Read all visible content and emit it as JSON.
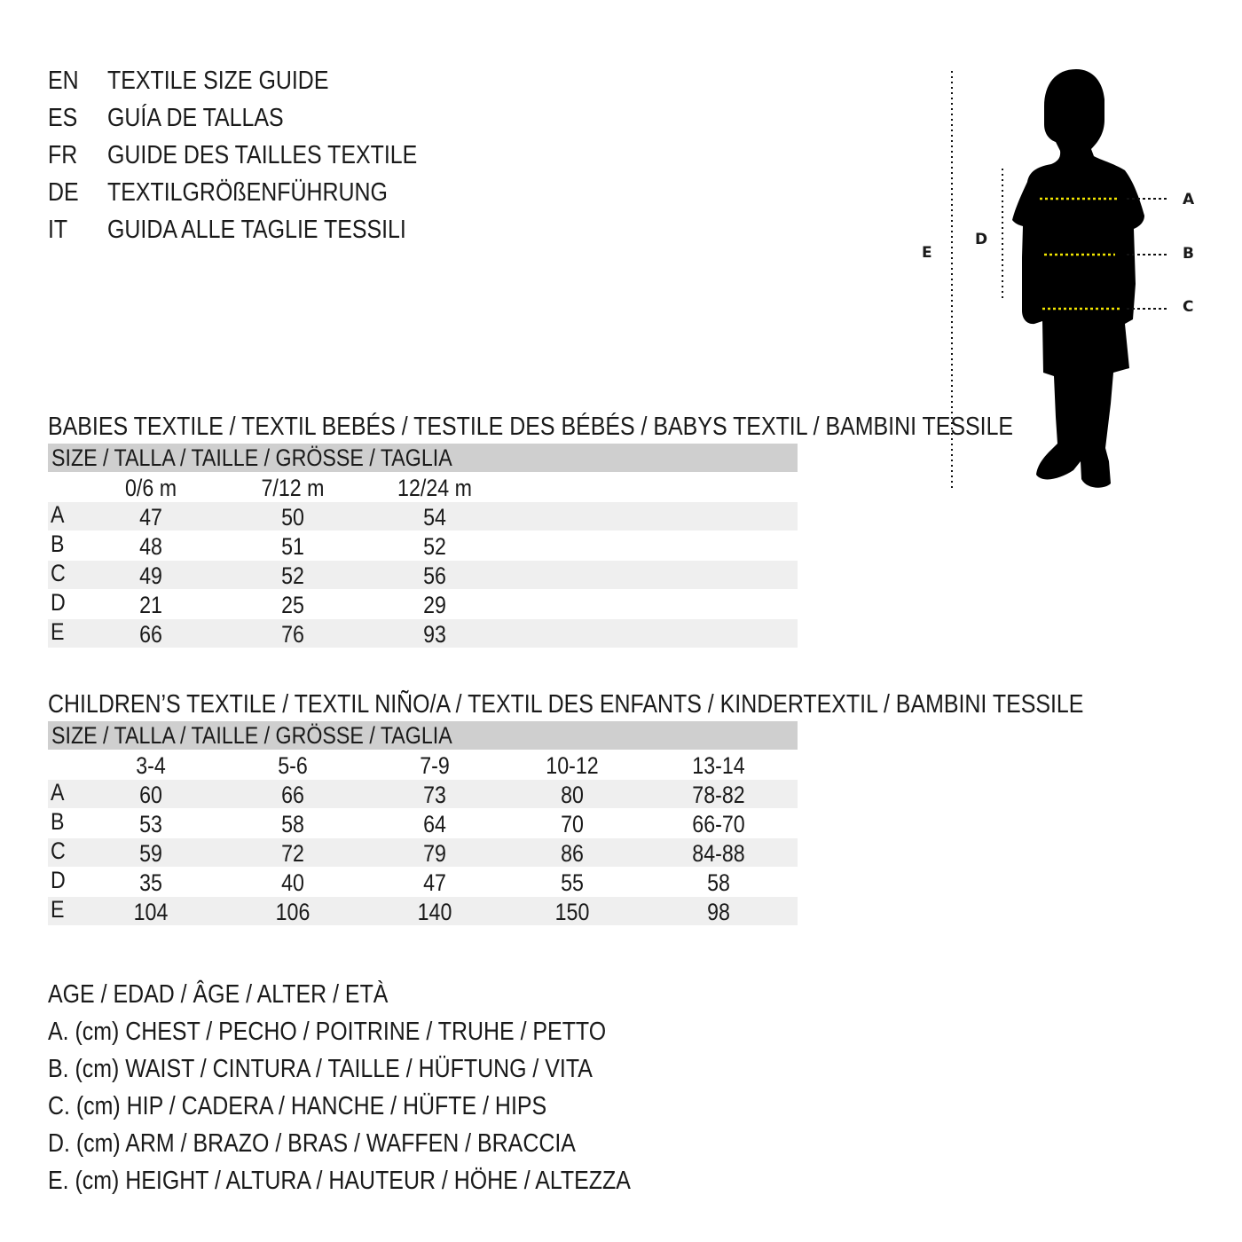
{
  "titles": [
    {
      "lang": "EN",
      "text": "TEXTILE SIZE GUIDE"
    },
    {
      "lang": "ES",
      "text": "GUÍA DE TALLAS"
    },
    {
      "lang": "FR",
      "text": "GUIDE DES TAILLES TEXTILE"
    },
    {
      "lang": "DE",
      "text": "TEXTILGRÖßENFÜHRUNG"
    },
    {
      "lang": "IT",
      "text": "GUIDA ALLE TAGLIE TESSILI"
    }
  ],
  "babies": {
    "heading": "BABIES TEXTILE / TEXTIL BEBÉS / TESTILE DES BÉBÉS / BABYS TEXTIL / BAMBINI TESSILE",
    "size_header": "SIZE / TALLA / TAILLE / GRÖSSE / TAGLIA",
    "columns": [
      "0/6 m",
      "7/12 m",
      "12/24 m"
    ],
    "rows": [
      {
        "label": "A",
        "values": [
          "47",
          "50",
          "54"
        ]
      },
      {
        "label": "B",
        "values": [
          "48",
          "51",
          "52"
        ]
      },
      {
        "label": "C",
        "values": [
          "49",
          "52",
          "56"
        ]
      },
      {
        "label": "D",
        "values": [
          "21",
          "25",
          "29"
        ]
      },
      {
        "label": "E",
        "values": [
          "66",
          "76",
          "93"
        ]
      }
    ]
  },
  "children": {
    "heading": "CHILDREN’S TEXTILE / TEXTIL NIÑO/A / TEXTIL DES ENFANTS / KINDERTEXTIL / BAMBINI TESSILE",
    "size_header": "SIZE / TALLA / TAILLE / GRÖSSE / TAGLIA",
    "columns": [
      "3-4",
      "5-6",
      "7-9",
      "10-12",
      "13-14"
    ],
    "rows": [
      {
        "label": "A",
        "values": [
          "60",
          "66",
          "73",
          "80",
          "78-82"
        ]
      },
      {
        "label": "B",
        "values": [
          "53",
          "58",
          "64",
          "70",
          "66-70"
        ]
      },
      {
        "label": "C",
        "values": [
          "59",
          "72",
          "79",
          "86",
          "84-88"
        ]
      },
      {
        "label": "D",
        "values": [
          "35",
          "40",
          "47",
          "55",
          "58"
        ]
      },
      {
        "label": "E",
        "values": [
          "104",
          "106",
          "140",
          "150",
          "98"
        ]
      }
    ]
  },
  "legend": [
    "AGE / EDAD / ÂGE / ALTER / ETÀ",
    "A. (cm) CHEST / PECHO / POITRINE / TRUHE / PETTO",
    "B. (cm) WAIST / CINTURA / TAILLE / HÜFTUNG / VITA",
    "C. (cm) HIP / CADERA / HANCHE / HÜFTE / HIPS",
    "D. (cm) ARM / BRAZO / BRAS / WAFFEN / BRACCIA",
    "E. (cm) HEIGHT / ALTURA / HAUTEUR / HÖHE / ALTEZZA"
  ],
  "figure": {
    "labels": {
      "A": "A",
      "B": "B",
      "C": "C",
      "D": "D",
      "E": "E"
    },
    "measure_line_color": "#f2e600",
    "silhouette_color": "#000000",
    "header_band_color": "#cfcfcf",
    "stripe_color": "#efefef"
  }
}
